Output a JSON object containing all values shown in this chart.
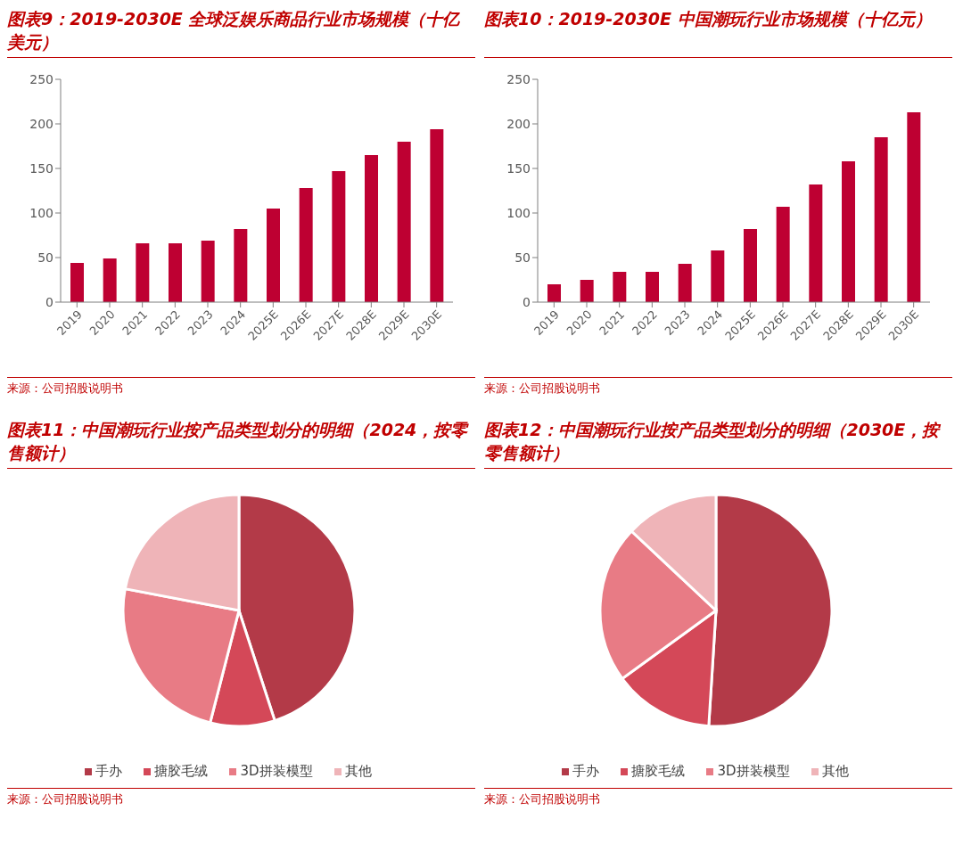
{
  "chart_data": [
    {
      "type": "bar",
      "title": "图表9：2019-2030E  全球泛娱乐商品行业市场规模（十亿美元）",
      "categories": [
        "2019",
        "2020",
        "2021",
        "2022",
        "2023",
        "2024",
        "2025E",
        "2026E",
        "2027E",
        "2028E",
        "2029E",
        "2030E"
      ],
      "values": [
        44,
        49,
        66,
        66,
        69,
        82,
        105,
        128,
        147,
        165,
        180,
        194
      ],
      "color": "#be0032",
      "ylim": [
        0,
        250
      ],
      "yticks": [
        0,
        50,
        100,
        150,
        200,
        250
      ],
      "annotations": [
        "来源：公司招股说明书"
      ]
    },
    {
      "type": "bar",
      "title": "图表10：2019-2030E  中国潮玩行业市场规模（十亿元）",
      "categories": [
        "2019",
        "2020",
        "2021",
        "2022",
        "2023",
        "2024",
        "2025E",
        "2026E",
        "2027E",
        "2028E",
        "2029E",
        "2030E"
      ],
      "values": [
        20,
        25,
        34,
        34,
        43,
        58,
        82,
        107,
        132,
        158,
        185,
        213
      ],
      "color": "#be0032",
      "ylim": [
        0,
        250
      ],
      "yticks": [
        0,
        50,
        100,
        150,
        200,
        250
      ],
      "annotations": [
        "来源：公司招股说明书"
      ]
    },
    {
      "type": "pie",
      "title": "图表11：中国潮玩行业按产品类型划分的明细（2024，按零售额计）",
      "categories": [
        "手办",
        "搪胶毛绒",
        "3D拼装模型",
        "其他"
      ],
      "values": [
        45,
        9,
        24,
        22
      ],
      "colors": [
        "#b33a48",
        "#d44858",
        "#e87b85",
        "#efb4b8"
      ],
      "legend": "bottom",
      "annotations": [
        "来源：公司招股说明书"
      ]
    },
    {
      "type": "pie",
      "title": "图表12：中国潮玩行业按产品类型划分的明细（2030E，按零售额计）",
      "categories": [
        "手办",
        "搪胶毛绒",
        "3D拼装模型",
        "其他"
      ],
      "values": [
        51,
        14,
        22,
        13
      ],
      "colors": [
        "#b33a48",
        "#d44858",
        "#e87b85",
        "#efb4b8"
      ],
      "legend": "bottom",
      "annotations": [
        "来源：公司招股说明书"
      ]
    }
  ]
}
